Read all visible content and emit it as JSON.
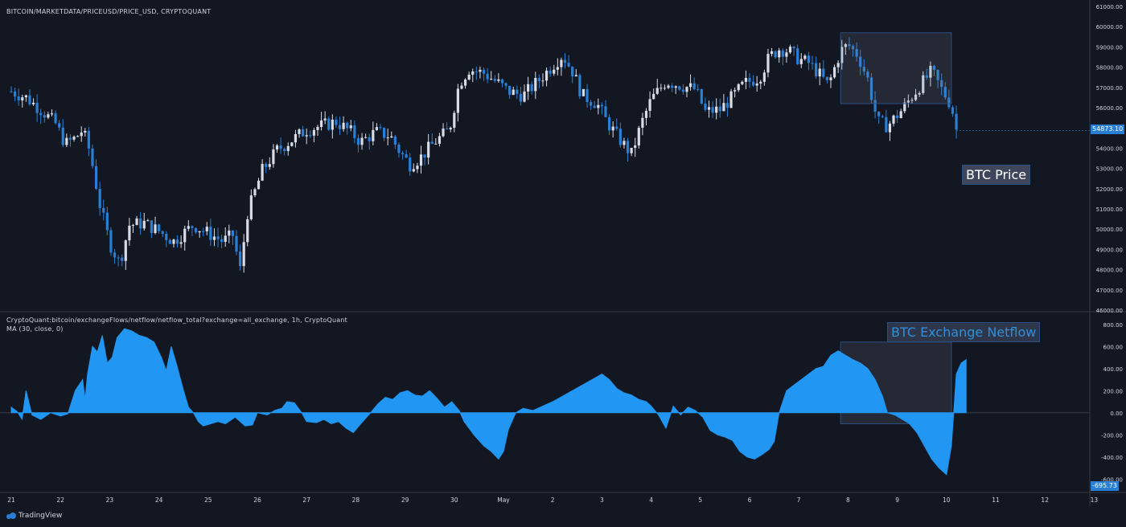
{
  "headers": {
    "price_title": "BITCOIN/MARKETDATA/PRICEUSD/PRICE_USD, CRYPTOQUANT",
    "netflow_title": "CryptoQuant:bitcoin/exchangeFlows/netflow/netflow_total?exchange=all_exchange, 1h, CryptoQuant",
    "ma_label": "MA (30, close, 0)"
  },
  "annotations": {
    "price": "BTC Price",
    "netflow": "BTC Exchange Netflow"
  },
  "labels": {
    "last_price": "54873.10",
    "last_netflow": "-695.73"
  },
  "brand": "TradingView",
  "colors": {
    "background": "#131722",
    "candle_up": "#d6dde8",
    "candle_down": "#2a7fd4",
    "area": "#2196f3",
    "highlight": "#2a5080"
  },
  "chart_data": [
    {
      "type": "candlestick",
      "title": "BITCOIN/MARKETDATA/PRICEUSD/PRICE_USD, CRYPTOQUANT",
      "x": [
        "21",
        "22",
        "23",
        "24",
        "25",
        "26",
        "27",
        "28",
        "29",
        "30",
        "May",
        "2",
        "3",
        "4",
        "5",
        "6",
        "7",
        "8",
        "9",
        "10",
        "11",
        "12",
        "13"
      ],
      "close_path": [
        [
          0,
          56800
        ],
        [
          0.3,
          56500
        ],
        [
          0.6,
          55900
        ],
        [
          0.9,
          55200
        ],
        [
          1.1,
          54200
        ],
        [
          1.3,
          54500
        ],
        [
          1.45,
          54900
        ],
        [
          1.6,
          53800
        ],
        [
          1.8,
          51200
        ],
        [
          2.0,
          49300
        ],
        [
          2.2,
          48300
        ],
        [
          2.4,
          50200
        ],
        [
          2.7,
          50300
        ],
        [
          3.0,
          49900
        ],
        [
          3.3,
          49400
        ],
        [
          3.7,
          50200
        ],
        [
          4.0,
          49800
        ],
        [
          4.3,
          49400
        ],
        [
          4.5,
          49700
        ],
        [
          4.65,
          48000
        ],
        [
          4.8,
          50800
        ],
        [
          5.1,
          52900
        ],
        [
          5.4,
          53900
        ],
        [
          5.7,
          54400
        ],
        [
          6.0,
          54900
        ],
        [
          6.3,
          55100
        ],
        [
          6.6,
          55300
        ],
        [
          6.9,
          54800
        ],
        [
          7.1,
          54300
        ],
        [
          7.4,
          54800
        ],
        [
          7.7,
          54600
        ],
        [
          7.9,
          53800
        ],
        [
          8.1,
          53200
        ],
        [
          8.3,
          53500
        ],
        [
          8.6,
          54300
        ],
        [
          8.9,
          54900
        ],
        [
          9.1,
          57200
        ],
        [
          9.3,
          57900
        ],
        [
          9.6,
          57700
        ],
        [
          9.9,
          57200
        ],
        [
          10.1,
          56800
        ],
        [
          10.4,
          56600
        ],
        [
          10.7,
          57300
        ],
        [
          11.0,
          58100
        ],
        [
          11.2,
          58600
        ],
        [
          11.4,
          57800
        ],
        [
          11.6,
          56600
        ],
        [
          11.9,
          56200
        ],
        [
          12.1,
          55300
        ],
        [
          12.4,
          54300
        ],
        [
          12.6,
          53700
        ],
        [
          12.8,
          55200
        ],
        [
          13.0,
          56400
        ],
        [
          13.3,
          57300
        ],
        [
          13.6,
          57100
        ],
        [
          13.9,
          56900
        ],
        [
          14.1,
          55800
        ],
        [
          14.4,
          55900
        ],
        [
          14.6,
          56400
        ],
        [
          14.9,
          57200
        ],
        [
          15.2,
          57500
        ],
        [
          15.4,
          58500
        ],
        [
          15.6,
          58900
        ],
        [
          15.8,
          58800
        ],
        [
          16.0,
          58400
        ],
        [
          16.2,
          58200
        ],
        [
          16.4,
          57700
        ],
        [
          16.6,
          57100
        ],
        [
          16.85,
          58800
        ],
        [
          17.0,
          59100
        ],
        [
          17.2,
          58600
        ],
        [
          17.4,
          57400
        ],
        [
          17.6,
          55300
        ],
        [
          17.8,
          55100
        ],
        [
          18.1,
          55900
        ],
        [
          18.4,
          56900
        ],
        [
          18.7,
          57800
        ],
        [
          18.9,
          56900
        ],
        [
          19.1,
          56100
        ],
        [
          19.2,
          54900
        ]
      ],
      "ylim": [
        46000,
        61000
      ],
      "yticks": [
        46000,
        47000,
        48000,
        49000,
        50000,
        51000,
        52000,
        53000,
        54000,
        55000,
        56000,
        57000,
        58000,
        59000,
        60000,
        61000
      ],
      "ytick_labels": [
        "46000.00",
        "47000.00",
        "48000.00",
        "49000.00",
        "50000.00",
        "51000.00",
        "52000.00",
        "53000.00",
        "54000.00",
        "55000.00",
        "56000.00",
        "57000.00",
        "58000.00",
        "59000.00",
        "60000.00",
        "61000.00"
      ],
      "last_value": 54873.1,
      "highlight_range_x": [
        16.85,
        19.1
      ],
      "annotation": "BTC Price"
    },
    {
      "type": "area",
      "title": "CryptoQuant:bitcoin/exchangeFlows/netflow/netflow_total?exchange=all_exchange, 1h, CryptoQuant",
      "series": [
        {
          "name": "MA (30, close, 0)",
          "points": [
            [
              0,
              50
            ],
            [
              0.12,
              10
            ],
            [
              0.22,
              -60
            ],
            [
              0.3,
              200
            ],
            [
              0.42,
              -20
            ],
            [
              0.6,
              -60
            ],
            [
              0.8,
              0
            ],
            [
              1.0,
              -30
            ],
            [
              1.15,
              -10
            ],
            [
              1.3,
              200
            ],
            [
              1.45,
              300
            ],
            [
              1.5,
              120
            ],
            [
              1.55,
              350
            ],
            [
              1.65,
              600
            ],
            [
              1.75,
              550
            ],
            [
              1.85,
              700
            ],
            [
              1.95,
              450
            ],
            [
              2.05,
              500
            ],
            [
              2.15,
              680
            ],
            [
              2.3,
              760
            ],
            [
              2.45,
              740
            ],
            [
              2.6,
              700
            ],
            [
              2.75,
              680
            ],
            [
              2.9,
              640
            ],
            [
              3.05,
              500
            ],
            [
              3.15,
              380
            ],
            [
              3.25,
              600
            ],
            [
              3.35,
              450
            ],
            [
              3.5,
              200
            ],
            [
              3.6,
              50
            ],
            [
              3.7,
              0
            ],
            [
              3.8,
              -80
            ],
            [
              3.9,
              -120
            ],
            [
              4.05,
              -100
            ],
            [
              4.2,
              -80
            ],
            [
              4.35,
              -100
            ],
            [
              4.55,
              -40
            ],
            [
              4.75,
              -120
            ],
            [
              4.9,
              -110
            ],
            [
              5.0,
              0
            ],
            [
              5.2,
              -20
            ],
            [
              5.35,
              20
            ],
            [
              5.5,
              40
            ],
            [
              5.6,
              100
            ],
            [
              5.75,
              90
            ],
            [
              5.9,
              0
            ],
            [
              6.0,
              -80
            ],
            [
              6.2,
              -90
            ],
            [
              6.35,
              -60
            ],
            [
              6.5,
              -100
            ],
            [
              6.65,
              -80
            ],
            [
              6.8,
              -140
            ],
            [
              6.95,
              -180
            ],
            [
              7.1,
              -100
            ],
            [
              7.3,
              0
            ],
            [
              7.45,
              80
            ],
            [
              7.6,
              140
            ],
            [
              7.75,
              120
            ],
            [
              7.9,
              180
            ],
            [
              8.05,
              200
            ],
            [
              8.2,
              160
            ],
            [
              8.35,
              150
            ],
            [
              8.5,
              200
            ],
            [
              8.65,
              130
            ],
            [
              8.8,
              50
            ],
            [
              8.95,
              100
            ],
            [
              9.1,
              20
            ],
            [
              9.2,
              -80
            ],
            [
              9.4,
              -200
            ],
            [
              9.6,
              -300
            ],
            [
              9.75,
              -350
            ],
            [
              9.9,
              -420
            ],
            [
              10.0,
              -350
            ],
            [
              10.1,
              -150
            ],
            [
              10.25,
              0
            ],
            [
              10.4,
              40
            ],
            [
              10.6,
              20
            ],
            [
              10.8,
              60
            ],
            [
              11.0,
              100
            ],
            [
              11.2,
              150
            ],
            [
              11.4,
              200
            ],
            [
              11.6,
              250
            ],
            [
              11.8,
              300
            ],
            [
              12.0,
              350
            ],
            [
              12.15,
              300
            ],
            [
              12.3,
              220
            ],
            [
              12.45,
              180
            ],
            [
              12.6,
              160
            ],
            [
              12.75,
              120
            ],
            [
              12.9,
              100
            ],
            [
              13.0,
              60
            ],
            [
              13.15,
              -20
            ],
            [
              13.3,
              -140
            ],
            [
              13.45,
              60
            ],
            [
              13.6,
              -20
            ],
            [
              13.75,
              50
            ],
            [
              13.9,
              20
            ],
            [
              14.05,
              -40
            ],
            [
              14.2,
              -160
            ],
            [
              14.35,
              -200
            ],
            [
              14.5,
              -220
            ],
            [
              14.65,
              -250
            ],
            [
              14.8,
              -350
            ],
            [
              14.95,
              -400
            ],
            [
              15.1,
              -420
            ],
            [
              15.25,
              -380
            ],
            [
              15.4,
              -330
            ],
            [
              15.5,
              -260
            ],
            [
              15.6,
              0
            ],
            [
              15.75,
              200
            ],
            [
              15.9,
              250
            ],
            [
              16.05,
              300
            ],
            [
              16.2,
              350
            ],
            [
              16.35,
              400
            ],
            [
              16.5,
              420
            ],
            [
              16.65,
              520
            ],
            [
              16.8,
              560
            ],
            [
              16.95,
              520
            ],
            [
              17.1,
              480
            ],
            [
              17.25,
              450
            ],
            [
              17.4,
              400
            ],
            [
              17.55,
              300
            ],
            [
              17.7,
              150
            ],
            [
              17.8,
              0
            ],
            [
              17.95,
              -20
            ],
            [
              18.1,
              -60
            ],
            [
              18.25,
              -100
            ],
            [
              18.4,
              -180
            ],
            [
              18.55,
              -300
            ],
            [
              18.7,
              -420
            ],
            [
              18.85,
              -500
            ],
            [
              19.0,
              -560
            ],
            [
              19.1,
              -300
            ],
            [
              19.2,
              350
            ],
            [
              19.3,
              450
            ],
            [
              19.4,
              480
            ]
          ]
        }
      ],
      "ylim": [
        -700,
        900
      ],
      "yticks": [
        -600,
        -400,
        -200,
        0,
        200,
        400,
        600,
        800
      ],
      "ytick_labels": [
        "-600.00",
        "-400.00",
        "-200.00",
        "0.00",
        "200.00",
        "400.00",
        "600.00",
        "800.00"
      ],
      "last_value": -695.73,
      "highlight_range_x": [
        16.85,
        19.1
      ],
      "annotation": "BTC Exchange Netflow"
    }
  ]
}
